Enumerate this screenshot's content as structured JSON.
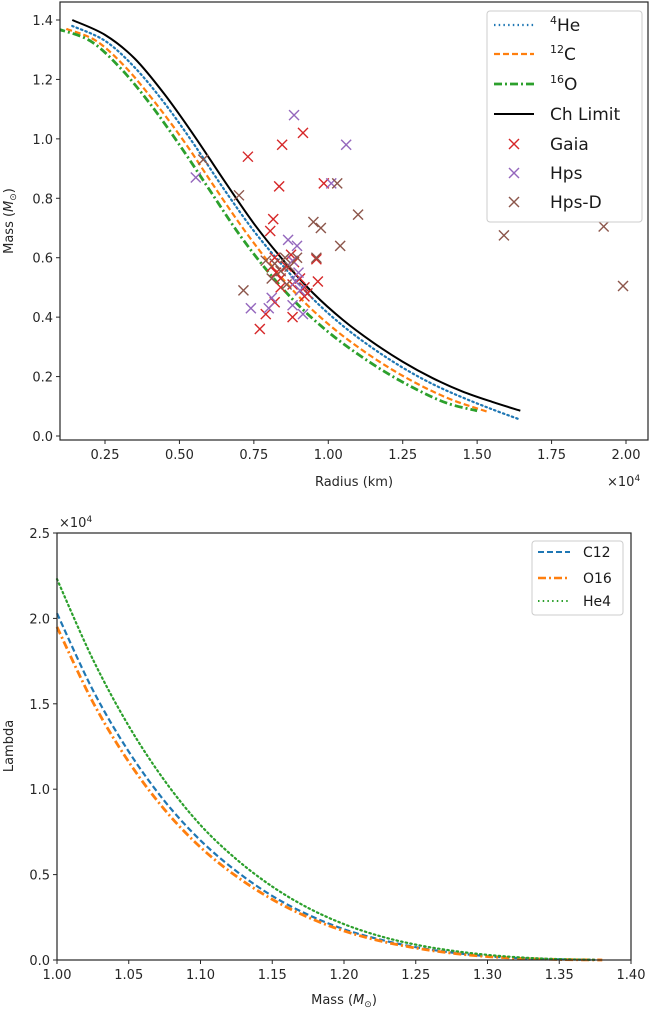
{
  "chart_data": [
    {
      "type": "line",
      "title": "",
      "xlabel": "Radius (km)",
      "ylabel": "Mass (M⊙)",
      "ylabel_main": "Mass (",
      "ylabel_sym": "M",
      "ylabel_sub": "⊙",
      "ylabel_end": ")",
      "x_offset_label": "×10",
      "x_offset_exp": "4",
      "xlim": [
        0.03,
        2.05
      ],
      "ylim": [
        -0.03,
        1.45
      ],
      "x_scale": 10000,
      "xticks": [
        0.25,
        0.5,
        0.75,
        1.0,
        1.25,
        1.5,
        1.75,
        2.0
      ],
      "xtick_labels": [
        "0.25",
        "0.50",
        "0.75",
        "1.00",
        "1.25",
        "1.50",
        "1.75",
        "2.00"
      ],
      "yticks": [
        0.0,
        0.2,
        0.4,
        0.6,
        0.8,
        1.0,
        1.2,
        1.4
      ],
      "ytick_labels": [
        "0.0",
        "0.2",
        "0.4",
        "0.6",
        "0.8",
        "1.0",
        "1.2",
        "1.4"
      ],
      "grid": false,
      "legend_position": "top-right",
      "series": [
        {
          "name": "4He",
          "label_sup": "4",
          "label_main": "He",
          "color": "#1f77b4",
          "style": "dotted",
          "x": [
            0.14,
            0.25,
            0.35,
            0.45,
            0.55,
            0.65,
            0.75,
            0.85,
            0.95,
            1.05,
            1.15,
            1.25,
            1.35,
            1.45,
            1.55,
            1.645
          ],
          "y": [
            1.38,
            1.33,
            1.24,
            1.12,
            0.98,
            0.83,
            0.69,
            0.57,
            0.46,
            0.37,
            0.295,
            0.23,
            0.175,
            0.13,
            0.09,
            0.055
          ]
        },
        {
          "name": "12C",
          "label_sup": "12",
          "label_main": "C",
          "color": "#ff7f0e",
          "style": "dashed",
          "x": [
            0.12,
            0.22,
            0.32,
            0.42,
            0.52,
            0.62,
            0.72,
            0.82,
            0.92,
            1.02,
            1.12,
            1.22,
            1.32,
            1.42,
            1.54
          ],
          "y": [
            1.37,
            1.33,
            1.24,
            1.12,
            0.985,
            0.835,
            0.69,
            0.56,
            0.45,
            0.36,
            0.285,
            0.22,
            0.165,
            0.12,
            0.08
          ]
        },
        {
          "name": "16O",
          "label_sup": "16",
          "label_main": "O",
          "color": "#2ca02c",
          "style": "dashdot",
          "x": [
            0.09,
            0.2,
            0.3,
            0.4,
            0.5,
            0.6,
            0.7,
            0.8,
            0.9,
            1.0,
            1.1,
            1.2,
            1.3,
            1.4,
            1.5
          ],
          "y": [
            1.37,
            1.33,
            1.24,
            1.12,
            0.98,
            0.83,
            0.68,
            0.55,
            0.44,
            0.35,
            0.275,
            0.21,
            0.155,
            0.11,
            0.085
          ]
        },
        {
          "name": "Ch Limit",
          "label_sup": "",
          "label_main": "Ch Limit",
          "color": "#000000",
          "style": "solid",
          "x": [
            0.14,
            0.25,
            0.35,
            0.45,
            0.55,
            0.65,
            0.75,
            0.85,
            0.95,
            1.05,
            1.15,
            1.25,
            1.35,
            1.45,
            1.55,
            1.645
          ],
          "y": [
            1.4,
            1.35,
            1.27,
            1.15,
            1.01,
            0.86,
            0.715,
            0.59,
            0.48,
            0.39,
            0.315,
            0.25,
            0.195,
            0.15,
            0.115,
            0.085
          ]
        }
      ],
      "scatter": [
        {
          "name": "Gaia",
          "label_main": "Gaia",
          "color": "#d62728",
          "points": [
            [
              0.73,
              0.94
            ],
            [
              0.845,
              0.98
            ],
            [
              0.915,
              1.02
            ],
            [
              0.835,
              0.84
            ],
            [
              0.985,
              0.85
            ],
            [
              0.815,
              0.73
            ],
            [
              0.805,
              0.69
            ],
            [
              0.82,
              0.6
            ],
            [
              0.81,
              0.57
            ],
            [
              0.825,
              0.55
            ],
            [
              0.84,
              0.53
            ],
            [
              0.86,
              0.57
            ],
            [
              0.875,
              0.61
            ],
            [
              0.885,
              0.585
            ],
            [
              0.905,
              0.53
            ],
            [
              0.92,
              0.5
            ],
            [
              0.93,
              0.48
            ],
            [
              0.965,
              0.52
            ],
            [
              0.88,
              0.4
            ],
            [
              0.82,
              0.45
            ],
            [
              0.79,
              0.41
            ],
            [
              0.77,
              0.36
            ],
            [
              0.88,
              0.51
            ],
            [
              0.84,
              0.5
            ],
            [
              0.96,
              0.595
            ],
            [
              0.92,
              0.47
            ]
          ]
        },
        {
          "name": "Hps",
          "label_main": "Hps",
          "color": "#9467bd",
          "points": [
            [
              0.555,
              0.87
            ],
            [
              0.885,
              1.08
            ],
            [
              1.06,
              0.98
            ],
            [
              1.01,
              0.85
            ],
            [
              0.865,
              0.66
            ],
            [
              0.895,
              0.64
            ],
            [
              0.88,
              0.59
            ],
            [
              0.9,
              0.55
            ],
            [
              0.89,
              0.52
            ],
            [
              0.905,
              0.49
            ],
            [
              0.74,
              0.43
            ],
            [
              0.8,
              0.43
            ],
            [
              0.81,
              0.465
            ],
            [
              0.88,
              0.44
            ],
            [
              0.915,
              0.41
            ]
          ]
        },
        {
          "name": "Hps-D",
          "label_main": "Hps-D",
          "color": "#8c564b",
          "points": [
            [
              0.58,
              0.93
            ],
            [
              0.7,
              0.81
            ],
            [
              1.03,
              0.85
            ],
            [
              0.95,
              0.72
            ],
            [
              0.975,
              0.7
            ],
            [
              1.1,
              0.745
            ],
            [
              1.04,
              0.64
            ],
            [
              0.79,
              0.59
            ],
            [
              0.82,
              0.58
            ],
            [
              0.84,
              0.555
            ],
            [
              0.87,
              0.57
            ],
            [
              0.895,
              0.6
            ],
            [
              0.96,
              0.6
            ],
            [
              0.81,
              0.53
            ],
            [
              0.86,
              0.51
            ],
            [
              0.715,
              0.49
            ],
            [
              0.855,
              0.6
            ],
            [
              1.59,
              0.675
            ],
            [
              1.925,
              0.705
            ],
            [
              1.99,
              0.505
            ]
          ]
        }
      ]
    },
    {
      "type": "line",
      "title": "",
      "xlabel_main": "Mass (",
      "xlabel_sym": "M",
      "xlabel_sub": "⊙",
      "xlabel_end": ")",
      "xlabel": "Mass (M⊙)",
      "ylabel": "Lambda",
      "y_offset_label": "×10",
      "y_offset_exp": "4",
      "xlim": [
        1.0,
        1.4
      ],
      "ylim": [
        0.0,
        2.5
      ],
      "y_scale": 10000,
      "xticks": [
        1.0,
        1.05,
        1.1,
        1.15,
        1.2,
        1.25,
        1.3,
        1.35,
        1.4
      ],
      "xtick_labels": [
        "1.00",
        "1.05",
        "1.10",
        "1.15",
        "1.20",
        "1.25",
        "1.30",
        "1.35",
        "1.40"
      ],
      "yticks": [
        0.0,
        0.5,
        1.0,
        1.5,
        2.0,
        2.5
      ],
      "ytick_labels": [
        "0.0",
        "0.5",
        "1.0",
        "1.5",
        "2.0",
        "2.5"
      ],
      "grid": false,
      "legend_position": "top-right",
      "series": [
        {
          "name": "C12",
          "color": "#1f77b4",
          "style": "dashed",
          "x": [
            1.0,
            1.025,
            1.05,
            1.075,
            1.1,
            1.125,
            1.15,
            1.175,
            1.2,
            1.225,
            1.25,
            1.275,
            1.3,
            1.325,
            1.35,
            1.375
          ],
          "y": [
            2.03,
            1.58,
            1.22,
            0.93,
            0.7,
            0.52,
            0.375,
            0.265,
            0.18,
            0.12,
            0.075,
            0.044,
            0.022,
            0.01,
            0.004,
            0.001
          ]
        },
        {
          "name": "O16",
          "color": "#ff7f0e",
          "style": "dashdot",
          "x": [
            1.0,
            1.025,
            1.05,
            1.075,
            1.1,
            1.125,
            1.15,
            1.175,
            1.2,
            1.225,
            1.25,
            1.275,
            1.3,
            1.325,
            1.35,
            1.38
          ],
          "y": [
            1.95,
            1.51,
            1.16,
            0.88,
            0.66,
            0.49,
            0.355,
            0.25,
            0.17,
            0.112,
            0.07,
            0.04,
            0.02,
            0.009,
            0.003,
            0.0
          ]
        },
        {
          "name": "He4",
          "color": "#2ca02c",
          "style": "dotted",
          "x": [
            1.0,
            1.025,
            1.05,
            1.075,
            1.1,
            1.125,
            1.15,
            1.175,
            1.2,
            1.225,
            1.25,
            1.275,
            1.3,
            1.325,
            1.35,
            1.375
          ],
          "y": [
            2.23,
            1.76,
            1.37,
            1.05,
            0.79,
            0.59,
            0.43,
            0.305,
            0.21,
            0.14,
            0.09,
            0.055,
            0.03,
            0.014,
            0.005,
            0.001
          ]
        }
      ]
    }
  ]
}
